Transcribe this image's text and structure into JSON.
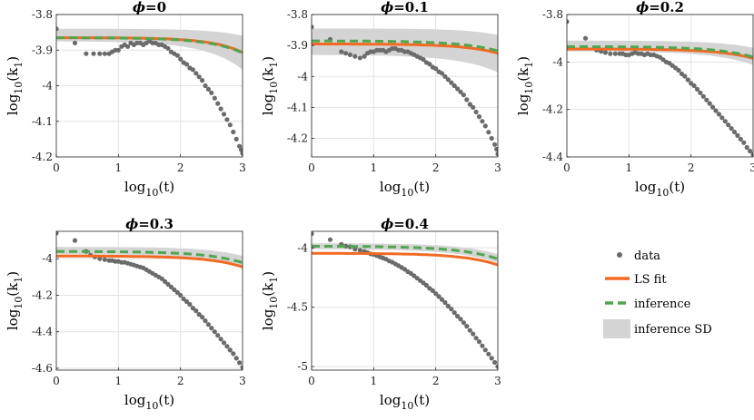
{
  "colors": {
    "data": "#6b6b6b",
    "ls_fit": "#f26a21",
    "inference": "#4fa64f",
    "inference_sd": "#d4d4d4"
  },
  "legend": {
    "placement": "bottom-right",
    "items": [
      {
        "key": "data",
        "label": "data"
      },
      {
        "key": "ls_fit",
        "label": "LS fit"
      },
      {
        "key": "inference",
        "label": "inference"
      },
      {
        "key": "inference_sd",
        "label": "inference SD"
      }
    ]
  },
  "chart_data": [
    {
      "type": "scatter",
      "title_math": "ϕ",
      "title_value": "=0",
      "xlabel_base": "log",
      "xlabel_sub": "10",
      "xlabel_arg": "(t)",
      "ylabel_base": "log",
      "ylabel_sub": "10",
      "ylabel_arg": "(k",
      "ylabel_sub2": "1",
      "ylabel_close": ")",
      "xlim": [
        0,
        3
      ],
      "ylim": [
        -4.2,
        -3.8
      ],
      "xticks": [
        "0",
        "1",
        "2",
        "3"
      ],
      "yticks": [
        {
          "v": -3.8,
          "label": "-3.8"
        },
        {
          "v": -3.9,
          "label": "-3.9"
        },
        {
          "v": -4.0,
          "label": "-4"
        },
        {
          "v": -4.1,
          "label": "-4.1"
        },
        {
          "v": -4.2,
          "label": "-4.2"
        }
      ],
      "grid": true,
      "ls_fit": {
        "a": -3.865,
        "b": 9.5e-05,
        "c": 0.88
      },
      "inference": {
        "a": -3.865,
        "b": 0.00017,
        "c": 0.8
      },
      "sd": {
        "a": -3.84,
        "b": 4e-05,
        "c": 0.9,
        "a2": -3.875,
        "b2": 0.00045,
        "c2": 0.75
      },
      "points": [
        [
          0,
          -3.84
        ],
        [
          0.3,
          -3.88
        ],
        [
          0.48,
          -3.91
        ],
        [
          0.6,
          -3.91
        ],
        [
          0.7,
          -3.91
        ],
        [
          0.78,
          -3.91
        ],
        [
          0.85,
          -3.91
        ],
        [
          0.9,
          -3.905
        ],
        [
          0.95,
          -3.9
        ],
        [
          1.0,
          -3.9
        ],
        [
          1.05,
          -3.89
        ],
        [
          1.1,
          -3.885
        ],
        [
          1.15,
          -3.89
        ],
        [
          1.2,
          -3.88
        ],
        [
          1.25,
          -3.885
        ],
        [
          1.3,
          -3.88
        ],
        [
          1.35,
          -3.88
        ],
        [
          1.4,
          -3.885
        ],
        [
          1.45,
          -3.88
        ],
        [
          1.5,
          -3.875
        ],
        [
          1.55,
          -3.88
        ],
        [
          1.6,
          -3.88
        ],
        [
          1.65,
          -3.885
        ],
        [
          1.7,
          -3.885
        ],
        [
          1.75,
          -3.89
        ],
        [
          1.8,
          -3.895
        ],
        [
          1.85,
          -3.905
        ],
        [
          1.9,
          -3.91
        ],
        [
          1.95,
          -3.915
        ],
        [
          2.0,
          -3.925
        ],
        [
          2.05,
          -3.935
        ],
        [
          2.1,
          -3.94
        ],
        [
          2.15,
          -3.95
        ],
        [
          2.2,
          -3.955
        ],
        [
          2.25,
          -3.965
        ],
        [
          2.3,
          -3.975
        ],
        [
          2.35,
          -3.985
        ],
        [
          2.4,
          -4.0
        ],
        [
          2.45,
          -4.01
        ],
        [
          2.5,
          -4.02
        ],
        [
          2.55,
          -4.035
        ],
        [
          2.6,
          -4.05
        ],
        [
          2.65,
          -4.065
        ],
        [
          2.7,
          -4.08
        ],
        [
          2.75,
          -4.095
        ],
        [
          2.8,
          -4.11
        ],
        [
          2.85,
          -4.13
        ],
        [
          2.9,
          -4.15
        ],
        [
          2.95,
          -4.17
        ],
        [
          2.98,
          -4.18
        ],
        [
          3.0,
          -4.19
        ]
      ]
    },
    {
      "type": "scatter",
      "title_math": "ϕ",
      "title_value": "=0.1",
      "xlabel_base": "log",
      "xlabel_sub": "10",
      "xlabel_arg": "(t)",
      "ylabel_base": "log",
      "ylabel_sub": "10",
      "ylabel_arg": "(k",
      "ylabel_sub2": "1",
      "ylabel_close": ")",
      "xlim": [
        0,
        3
      ],
      "ylim": [
        -4.26,
        -3.8
      ],
      "xticks": [
        "0",
        "1",
        "2",
        "3"
      ],
      "yticks": [
        {
          "v": -3.8,
          "label": "-3.8"
        },
        {
          "v": -3.9,
          "label": "-3.9"
        },
        {
          "v": -4.0,
          "label": "-4"
        },
        {
          "v": -4.1,
          "label": "-4.1"
        },
        {
          "v": -4.2,
          "label": "-4.2"
        }
      ],
      "grid": true,
      "ls_fit": {
        "a": -3.895,
        "b": 0.00012,
        "c": 0.8
      },
      "inference": {
        "a": -3.885,
        "b": 0.00021,
        "c": 0.73
      },
      "sd": {
        "a": -3.845,
        "b": 6e-05,
        "c": 0.85,
        "a2": -3.93,
        "b2": 0.00045,
        "c2": 0.7
      },
      "points": [
        [
          0,
          -3.84
        ],
        [
          0.3,
          -3.88
        ],
        [
          0.48,
          -3.92
        ],
        [
          0.55,
          -3.925
        ],
        [
          0.62,
          -3.93
        ],
        [
          0.7,
          -3.935
        ],
        [
          0.78,
          -3.94
        ],
        [
          0.85,
          -3.935
        ],
        [
          0.9,
          -3.925
        ],
        [
          0.95,
          -3.92
        ],
        [
          1.0,
          -3.92
        ],
        [
          1.05,
          -3.915
        ],
        [
          1.1,
          -3.915
        ],
        [
          1.15,
          -3.915
        ],
        [
          1.2,
          -3.92
        ],
        [
          1.25,
          -3.915
        ],
        [
          1.3,
          -3.91
        ],
        [
          1.35,
          -3.91
        ],
        [
          1.4,
          -3.915
        ],
        [
          1.45,
          -3.915
        ],
        [
          1.5,
          -3.92
        ],
        [
          1.55,
          -3.92
        ],
        [
          1.6,
          -3.925
        ],
        [
          1.65,
          -3.93
        ],
        [
          1.7,
          -3.935
        ],
        [
          1.75,
          -3.94
        ],
        [
          1.8,
          -3.945
        ],
        [
          1.85,
          -3.955
        ],
        [
          1.9,
          -3.96
        ],
        [
          1.95,
          -3.97
        ],
        [
          2.0,
          -3.975
        ],
        [
          2.05,
          -3.985
        ],
        [
          2.1,
          -3.99
        ],
        [
          2.15,
          -4.0
        ],
        [
          2.2,
          -4.01
        ],
        [
          2.25,
          -4.02
        ],
        [
          2.3,
          -4.03
        ],
        [
          2.35,
          -4.04
        ],
        [
          2.4,
          -4.05
        ],
        [
          2.45,
          -4.06
        ],
        [
          2.5,
          -4.075
        ],
        [
          2.55,
          -4.09
        ],
        [
          2.6,
          -4.1
        ],
        [
          2.65,
          -4.115
        ],
        [
          2.7,
          -4.13
        ],
        [
          2.75,
          -4.145
        ],
        [
          2.8,
          -4.16
        ],
        [
          2.85,
          -4.18
        ],
        [
          2.9,
          -4.2
        ],
        [
          2.95,
          -4.22
        ],
        [
          2.98,
          -4.235
        ],
        [
          3.0,
          -4.25
        ]
      ]
    },
    {
      "type": "scatter",
      "title_math": "ϕ",
      "title_value": "=0.2",
      "xlabel_base": "log",
      "xlabel_sub": "10",
      "xlabel_arg": "(t)",
      "ylabel_base": "log",
      "ylabel_sub": "10",
      "ylabel_arg": "(k",
      "ylabel_sub2": "1",
      "ylabel_close": ")",
      "xlim": [
        0,
        3
      ],
      "ylim": [
        -4.4,
        -3.8
      ],
      "xticks": [
        "0",
        "1",
        "2",
        "3"
      ],
      "yticks": [
        {
          "v": -3.8,
          "label": "-3.8"
        },
        {
          "v": -4.0,
          "label": "-4"
        },
        {
          "v": -4.2,
          "label": "-4.2"
        },
        {
          "v": -4.4,
          "label": "-4.4"
        }
      ],
      "grid": true,
      "ls_fit": {
        "a": -3.945,
        "b": 0.00018,
        "c": 0.78
      },
      "inference": {
        "a": -3.935,
        "b": 0.00025,
        "c": 0.75
      },
      "sd": {
        "a": -3.91,
        "b": 0.00012,
        "c": 0.8,
        "a2": -3.955,
        "b2": 0.0004,
        "c2": 0.72
      },
      "points": [
        [
          0,
          -3.83
        ],
        [
          0.3,
          -3.9
        ],
        [
          0.48,
          -3.95
        ],
        [
          0.55,
          -3.955
        ],
        [
          0.62,
          -3.96
        ],
        [
          0.7,
          -3.965
        ],
        [
          0.78,
          -3.965
        ],
        [
          0.85,
          -3.965
        ],
        [
          0.9,
          -3.965
        ],
        [
          0.95,
          -3.97
        ],
        [
          1.0,
          -3.97
        ],
        [
          1.05,
          -3.965
        ],
        [
          1.1,
          -3.96
        ],
        [
          1.15,
          -3.965
        ],
        [
          1.2,
          -3.965
        ],
        [
          1.25,
          -3.97
        ],
        [
          1.3,
          -3.965
        ],
        [
          1.35,
          -3.97
        ],
        [
          1.4,
          -3.97
        ],
        [
          1.45,
          -3.975
        ],
        [
          1.5,
          -3.98
        ],
        [
          1.55,
          -3.99
        ],
        [
          1.6,
          -4.0
        ],
        [
          1.65,
          -4.005
        ],
        [
          1.7,
          -4.015
        ],
        [
          1.75,
          -4.025
        ],
        [
          1.8,
          -4.035
        ],
        [
          1.85,
          -4.05
        ],
        [
          1.9,
          -4.06
        ],
        [
          1.95,
          -4.075
        ],
        [
          2.0,
          -4.09
        ],
        [
          2.05,
          -4.1
        ],
        [
          2.1,
          -4.115
        ],
        [
          2.15,
          -4.13
        ],
        [
          2.2,
          -4.145
        ],
        [
          2.25,
          -4.16
        ],
        [
          2.3,
          -4.175
        ],
        [
          2.35,
          -4.19
        ],
        [
          2.4,
          -4.205
        ],
        [
          2.45,
          -4.22
        ],
        [
          2.5,
          -4.235
        ],
        [
          2.55,
          -4.25
        ],
        [
          2.6,
          -4.265
        ],
        [
          2.65,
          -4.28
        ],
        [
          2.7,
          -4.295
        ],
        [
          2.75,
          -4.31
        ],
        [
          2.8,
          -4.325
        ],
        [
          2.85,
          -4.34
        ],
        [
          2.9,
          -4.36
        ],
        [
          2.95,
          -4.375
        ],
        [
          3.0,
          -4.39
        ]
      ]
    },
    {
      "type": "scatter",
      "title_math": "ϕ",
      "title_value": "=0.3",
      "xlabel_base": "log",
      "xlabel_sub": "10",
      "xlabel_arg": "(t)",
      "ylabel_base": "log",
      "ylabel_sub": "10",
      "ylabel_arg": "(k",
      "ylabel_sub2": "1",
      "ylabel_close": ")",
      "xlim": [
        0,
        3
      ],
      "ylim": [
        -4.61,
        -3.85
      ],
      "xticks": [
        "0",
        "1",
        "2",
        "3"
      ],
      "yticks": [
        {
          "v": -4.0,
          "label": "-4"
        },
        {
          "v": -4.2,
          "label": "-4.2"
        },
        {
          "v": -4.4,
          "label": "-4.4"
        },
        {
          "v": -4.6,
          "label": "-4.6"
        }
      ],
      "grid": true,
      "ls_fit": {
        "a": -3.985,
        "b": 0.00024,
        "c": 0.8
      },
      "inference": {
        "a": -3.96,
        "b": 0.00035,
        "c": 0.75
      },
      "sd": {
        "a": -3.935,
        "b": 0.0002,
        "c": 0.8,
        "a2": -3.975,
        "b2": 0.00045,
        "c2": 0.72
      },
      "points": [
        [
          0,
          -3.86
        ],
        [
          0.3,
          -3.9
        ],
        [
          0.48,
          -3.96
        ],
        [
          0.55,
          -3.98
        ],
        [
          0.62,
          -3.99
        ],
        [
          0.7,
          -4.0
        ],
        [
          0.78,
          -4.005
        ],
        [
          0.85,
          -4.01
        ],
        [
          0.9,
          -4.01
        ],
        [
          0.95,
          -4.015
        ],
        [
          1.0,
          -4.015
        ],
        [
          1.05,
          -4.02
        ],
        [
          1.1,
          -4.02
        ],
        [
          1.15,
          -4.025
        ],
        [
          1.2,
          -4.03
        ],
        [
          1.25,
          -4.035
        ],
        [
          1.3,
          -4.04
        ],
        [
          1.35,
          -4.045
        ],
        [
          1.4,
          -4.05
        ],
        [
          1.45,
          -4.06
        ],
        [
          1.5,
          -4.07
        ],
        [
          1.55,
          -4.08
        ],
        [
          1.6,
          -4.09
        ],
        [
          1.65,
          -4.1
        ],
        [
          1.7,
          -4.11
        ],
        [
          1.75,
          -4.125
        ],
        [
          1.8,
          -4.14
        ],
        [
          1.85,
          -4.155
        ],
        [
          1.9,
          -4.17
        ],
        [
          1.95,
          -4.185
        ],
        [
          2.0,
          -4.2
        ],
        [
          2.05,
          -4.22
        ],
        [
          2.1,
          -4.235
        ],
        [
          2.15,
          -4.25
        ],
        [
          2.2,
          -4.27
        ],
        [
          2.25,
          -4.285
        ],
        [
          2.3,
          -4.305
        ],
        [
          2.35,
          -4.32
        ],
        [
          2.4,
          -4.34
        ],
        [
          2.45,
          -4.36
        ],
        [
          2.5,
          -4.38
        ],
        [
          2.55,
          -4.4
        ],
        [
          2.6,
          -4.42
        ],
        [
          2.65,
          -4.44
        ],
        [
          2.7,
          -4.46
        ],
        [
          2.75,
          -4.48
        ],
        [
          2.8,
          -4.5
        ],
        [
          2.85,
          -4.52
        ],
        [
          2.9,
          -4.545
        ],
        [
          2.95,
          -4.57
        ],
        [
          3.0,
          -4.595
        ]
      ]
    },
    {
      "type": "scatter",
      "title_math": "ϕ",
      "title_value": "=0.4",
      "xlabel_base": "log",
      "xlabel_sub": "10",
      "xlabel_arg": "(t)",
      "ylabel_base": "log",
      "ylabel_sub": "10",
      "ylabel_arg": "(k",
      "ylabel_sub2": "1",
      "ylabel_close": ")",
      "xlim": [
        0,
        3
      ],
      "ylim": [
        -5.03,
        -3.86
      ],
      "xticks": [
        "0",
        "1",
        "2",
        "3"
      ],
      "yticks": [
        {
          "v": -4.0,
          "label": "-4"
        },
        {
          "v": -4.5,
          "label": "-4.5"
        },
        {
          "v": -5.0,
          "label": "-5"
        }
      ],
      "grid": true,
      "ls_fit": {
        "a": -4.045,
        "b": 0.00045,
        "c": 0.78
      },
      "inference": {
        "a": -3.985,
        "b": 0.0008,
        "c": 0.71
      },
      "sd": {
        "a": -3.96,
        "b": 0.0006,
        "c": 0.73,
        "a2": -4.01,
        "b2": 0.001,
        "c2": 0.69
      },
      "points": [
        [
          0,
          -3.88
        ],
        [
          0.3,
          -3.93
        ],
        [
          0.48,
          -3.97
        ],
        [
          0.55,
          -3.985
        ],
        [
          0.62,
          -3.99
        ],
        [
          0.7,
          -4.01
        ],
        [
          0.78,
          -4.02
        ],
        [
          0.85,
          -4.03
        ],
        [
          0.9,
          -4.04
        ],
        [
          0.95,
          -4.05
        ],
        [
          1.0,
          -4.055
        ],
        [
          1.05,
          -4.065
        ],
        [
          1.1,
          -4.075
        ],
        [
          1.15,
          -4.085
        ],
        [
          1.2,
          -4.095
        ],
        [
          1.25,
          -4.11
        ],
        [
          1.3,
          -4.12
        ],
        [
          1.35,
          -4.135
        ],
        [
          1.4,
          -4.15
        ],
        [
          1.45,
          -4.165
        ],
        [
          1.5,
          -4.18
        ],
        [
          1.55,
          -4.2
        ],
        [
          1.6,
          -4.215
        ],
        [
          1.65,
          -4.235
        ],
        [
          1.7,
          -4.255
        ],
        [
          1.75,
          -4.275
        ],
        [
          1.8,
          -4.295
        ],
        [
          1.85,
          -4.315
        ],
        [
          1.9,
          -4.34
        ],
        [
          1.95,
          -4.36
        ],
        [
          2.0,
          -4.385
        ],
        [
          2.05,
          -4.41
        ],
        [
          2.1,
          -4.435
        ],
        [
          2.15,
          -4.46
        ],
        [
          2.2,
          -4.49
        ],
        [
          2.25,
          -4.515
        ],
        [
          2.3,
          -4.545
        ],
        [
          2.35,
          -4.575
        ],
        [
          2.4,
          -4.6
        ],
        [
          2.45,
          -4.63
        ],
        [
          2.5,
          -4.66
        ],
        [
          2.55,
          -4.695
        ],
        [
          2.6,
          -4.725
        ],
        [
          2.65,
          -4.76
        ],
        [
          2.7,
          -4.79
        ],
        [
          2.75,
          -4.825
        ],
        [
          2.8,
          -4.86
        ],
        [
          2.85,
          -4.895
        ],
        [
          2.9,
          -4.93
        ],
        [
          2.95,
          -4.965
        ],
        [
          3.0,
          -5.0
        ]
      ]
    }
  ]
}
